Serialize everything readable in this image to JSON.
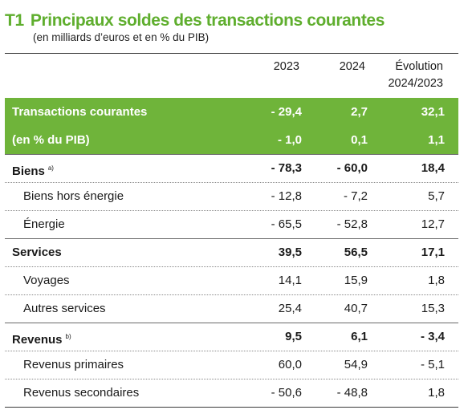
{
  "header": {
    "code": "T1",
    "title": "Principaux soldes des transactions courantes",
    "subtitle": "(en milliards d’euros et en % du PIB)"
  },
  "columns": {
    "y2023": "2023",
    "y2024": "2024",
    "evo_line1": "Évolution",
    "evo_line2": "2024/2023"
  },
  "colors": {
    "accent": "#5fae2e",
    "highlight_band": "#6fb43a"
  },
  "rows": [
    {
      "label": "Transactions courantes",
      "v2023": "- 29,4",
      "v2024": "2,7",
      "evo": "32,1"
    },
    {
      "label": "(en % du PIB)",
      "v2023": "- 1,0",
      "v2024": "0,1",
      "evo": "1,1"
    },
    {
      "label": "Biens",
      "note": "a)",
      "v2023": "- 78,3",
      "v2024": "- 60,0",
      "evo": "18,4"
    },
    {
      "label": "Biens hors énergie",
      "v2023": "- 12,8",
      "v2024": "- 7,2",
      "evo": "5,7"
    },
    {
      "label": "Énergie",
      "v2023": "- 65,5",
      "v2024": "- 52,8",
      "evo": "12,7"
    },
    {
      "label": "Services",
      "v2023": "39,5",
      "v2024": "56,5",
      "evo": "17,1"
    },
    {
      "label": "Voyages",
      "v2023": "14,1",
      "v2024": "15,9",
      "evo": "1,8"
    },
    {
      "label": "Autres services",
      "v2023": "25,4",
      "v2024": "40,7",
      "evo": "15,3"
    },
    {
      "label": "Revenus",
      "note": "b)",
      "v2023": "9,5",
      "v2024": "6,1",
      "evo": "- 3,4"
    },
    {
      "label": "Revenus primaires",
      "v2023": "60,0",
      "v2024": "54,9",
      "evo": "- 5,1"
    },
    {
      "label": "Revenus secondaires",
      "v2023": "- 50,6",
      "v2024": "- 48,8",
      "evo": "1,8"
    }
  ]
}
